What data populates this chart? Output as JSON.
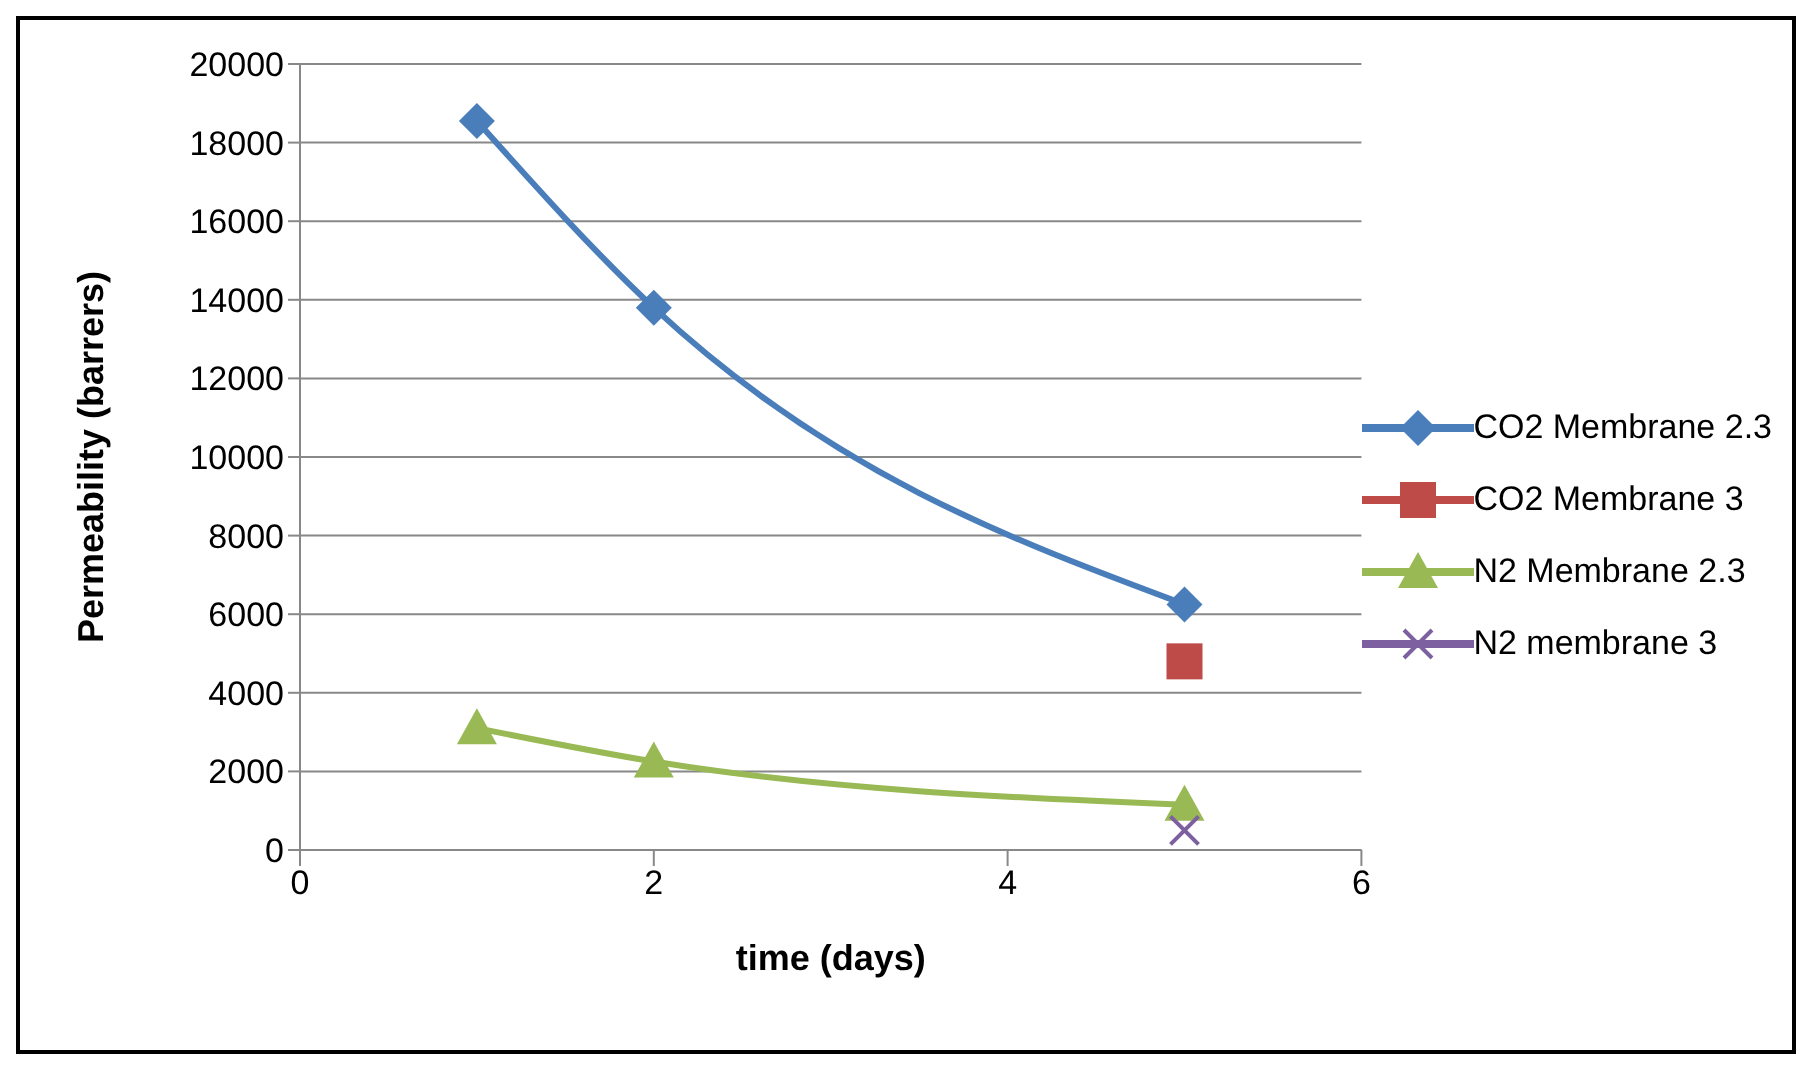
{
  "chart_data": {
    "type": "line",
    "xlabel": "time (days)",
    "ylabel": "Permeability (barrers)",
    "xlim": [
      0,
      6
    ],
    "xticks": [
      0,
      2,
      4,
      6
    ],
    "ylim": [
      0,
      20000
    ],
    "yticks": [
      0,
      2000,
      4000,
      6000,
      8000,
      10000,
      12000,
      14000,
      16000,
      18000,
      20000
    ],
    "grid": "y",
    "legend": "right",
    "series": [
      {
        "name": "CO2 Membrane 2.3",
        "color": "#4a7ebb",
        "marker": "diamond",
        "x": [
          1,
          2,
          5
        ],
        "values": [
          18550,
          13800,
          6250
        ]
      },
      {
        "name": "CO2 Membrane 3",
        "color": "#be4b48",
        "marker": "square",
        "x": [
          5
        ],
        "values": [
          4800
        ]
      },
      {
        "name": "N2 Membrane 2.3",
        "color": "#98b954",
        "marker": "triangle",
        "x": [
          1,
          2,
          5
        ],
        "values": [
          3100,
          2250,
          1150
        ]
      },
      {
        "name": "N2 membrane 3",
        "color": "#7d60a0",
        "marker": "cross",
        "x": [
          5
        ],
        "values": [
          500
        ]
      }
    ]
  }
}
